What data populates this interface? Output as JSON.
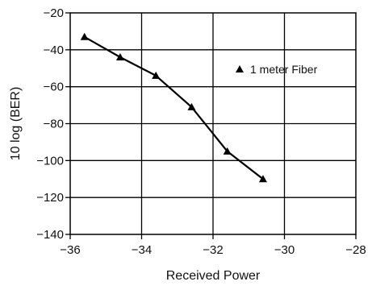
{
  "chart_data": {
    "type": "line",
    "title": "",
    "xlabel": "Received Power",
    "ylabel": "10 log (BER)",
    "xlim": [
      -36,
      -28
    ],
    "ylim": [
      -140,
      -20
    ],
    "x_ticks": [
      -36,
      -34,
      -32,
      -30,
      -28
    ],
    "y_ticks": [
      -20,
      -40,
      -60,
      -80,
      -100,
      -120,
      -140
    ],
    "x_tick_labels": [
      "−36",
      "−34",
      "−32",
      "−30",
      "−28"
    ],
    "y_tick_labels": [
      "−20",
      "−40",
      "−60",
      "−80",
      "−100",
      "−120",
      "−140"
    ],
    "grid": true,
    "legend_position": "top-right",
    "series": [
      {
        "name": "1 meter Fiber",
        "marker": "triangle",
        "color": "#000000",
        "x": [
          -35.6,
          -34.6,
          -33.6,
          -32.6,
          -31.6,
          -30.6
        ],
        "y": [
          -33,
          -44,
          -54,
          -71,
          -95,
          -110
        ]
      }
    ]
  }
}
